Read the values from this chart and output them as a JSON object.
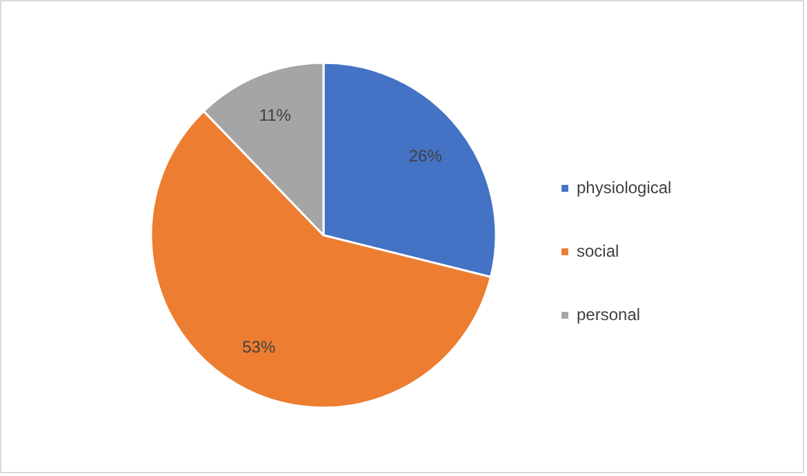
{
  "chart_data": {
    "type": "pie",
    "categories": [
      "physiological",
      "social",
      "personal"
    ],
    "values": [
      26,
      53,
      11
    ],
    "value_labels": [
      "26%",
      "53%",
      "11%"
    ],
    "colors": [
      "#4472c4",
      "#ed7d31",
      "#a5a5a5"
    ],
    "legend": "right"
  }
}
